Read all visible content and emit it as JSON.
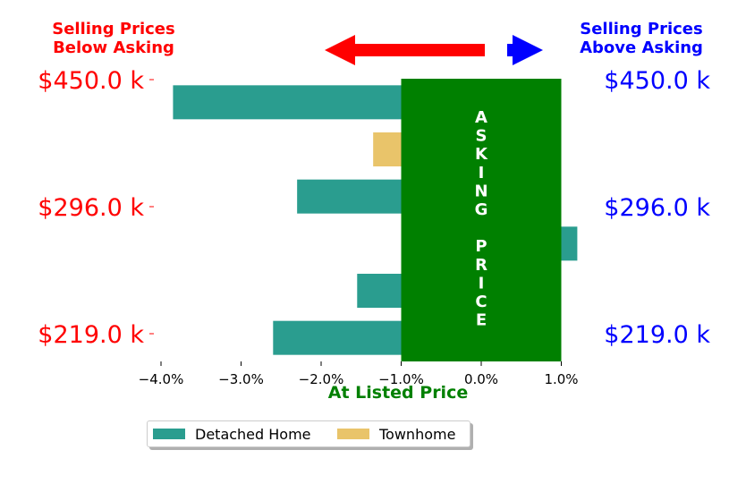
{
  "headers": {
    "left": "Selling Prices\nBelow Asking",
    "right": "Selling Prices\nAbove Asking"
  },
  "colors": {
    "below": "#ff0000",
    "above": "#0000ff",
    "asking": "#008000",
    "detached": "#2a9d8f",
    "townhome": "#e9c46a"
  },
  "chart_data": {
    "type": "bar",
    "orientation": "horizontal",
    "xlabel": "At Listed Price",
    "xlim": [
      -4.3,
      1.0
    ],
    "x_ticks": [
      -4.0,
      -3.0,
      -2.0,
      -1.0,
      0.0,
      1.0
    ],
    "x_tick_labels": [
      "−4.0%",
      "−3.0%",
      "−2.0%",
      "−1.0%",
      "0.0%",
      "1.0%"
    ],
    "y_tick_labels": [
      "$450.0 k",
      "$296.0 k",
      "$219.0 k"
    ],
    "asking_band": {
      "from": -1.0,
      "to": 1.0,
      "text": "ASKING PRICE"
    },
    "series": [
      {
        "name": "Detached Home",
        "color": "#2a9d8f"
      },
      {
        "name": "Townhome",
        "color": "#e9c46a"
      }
    ],
    "bars": [
      {
        "series": 0,
        "value": -3.85
      },
      {
        "series": 1,
        "value": -1.35
      },
      {
        "series": 0,
        "value": -2.3
      },
      {
        "series": 0,
        "value": 1.2
      },
      {
        "series": 0,
        "value": -1.55
      },
      {
        "series": 0,
        "value": -2.6
      }
    ],
    "grid": false,
    "legend": "bottom"
  }
}
